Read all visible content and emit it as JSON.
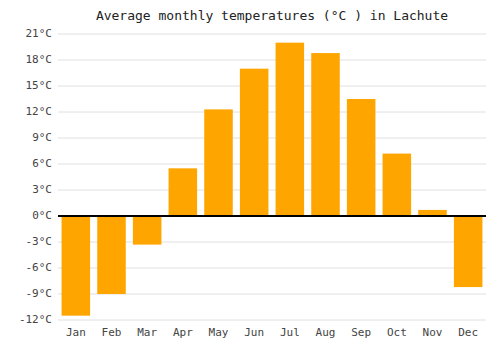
{
  "chart_data": {
    "type": "bar",
    "title": "Average monthly temperatures (°C ) in Lachute",
    "categories": [
      "Jan",
      "Feb",
      "Mar",
      "Apr",
      "May",
      "Jun",
      "Jul",
      "Aug",
      "Sep",
      "Oct",
      "Nov",
      "Dec"
    ],
    "values": [
      -11.5,
      -9.0,
      -3.3,
      5.5,
      12.3,
      17.0,
      20.0,
      18.8,
      13.5,
      7.2,
      0.7,
      -8.2
    ],
    "color": "#FFA500",
    "ylim": [
      -12,
      21
    ],
    "yticks": [
      {
        "value": -12,
        "label": "-12°C"
      },
      {
        "value": -9,
        "label": "-9°C"
      },
      {
        "value": -6,
        "label": "-6°C"
      },
      {
        "value": -3,
        "label": "-3°C"
      },
      {
        "value": 0,
        "label": "0°C"
      },
      {
        "value": 3,
        "label": "3°C"
      },
      {
        "value": 6,
        "label": "6°C"
      },
      {
        "value": 9,
        "label": "9°C"
      },
      {
        "value": 12,
        "label": "12°C"
      },
      {
        "value": 15,
        "label": "15°C"
      },
      {
        "value": 18,
        "label": "18°C"
      },
      {
        "value": 21,
        "label": "21°C"
      }
    ],
    "grid": true
  }
}
